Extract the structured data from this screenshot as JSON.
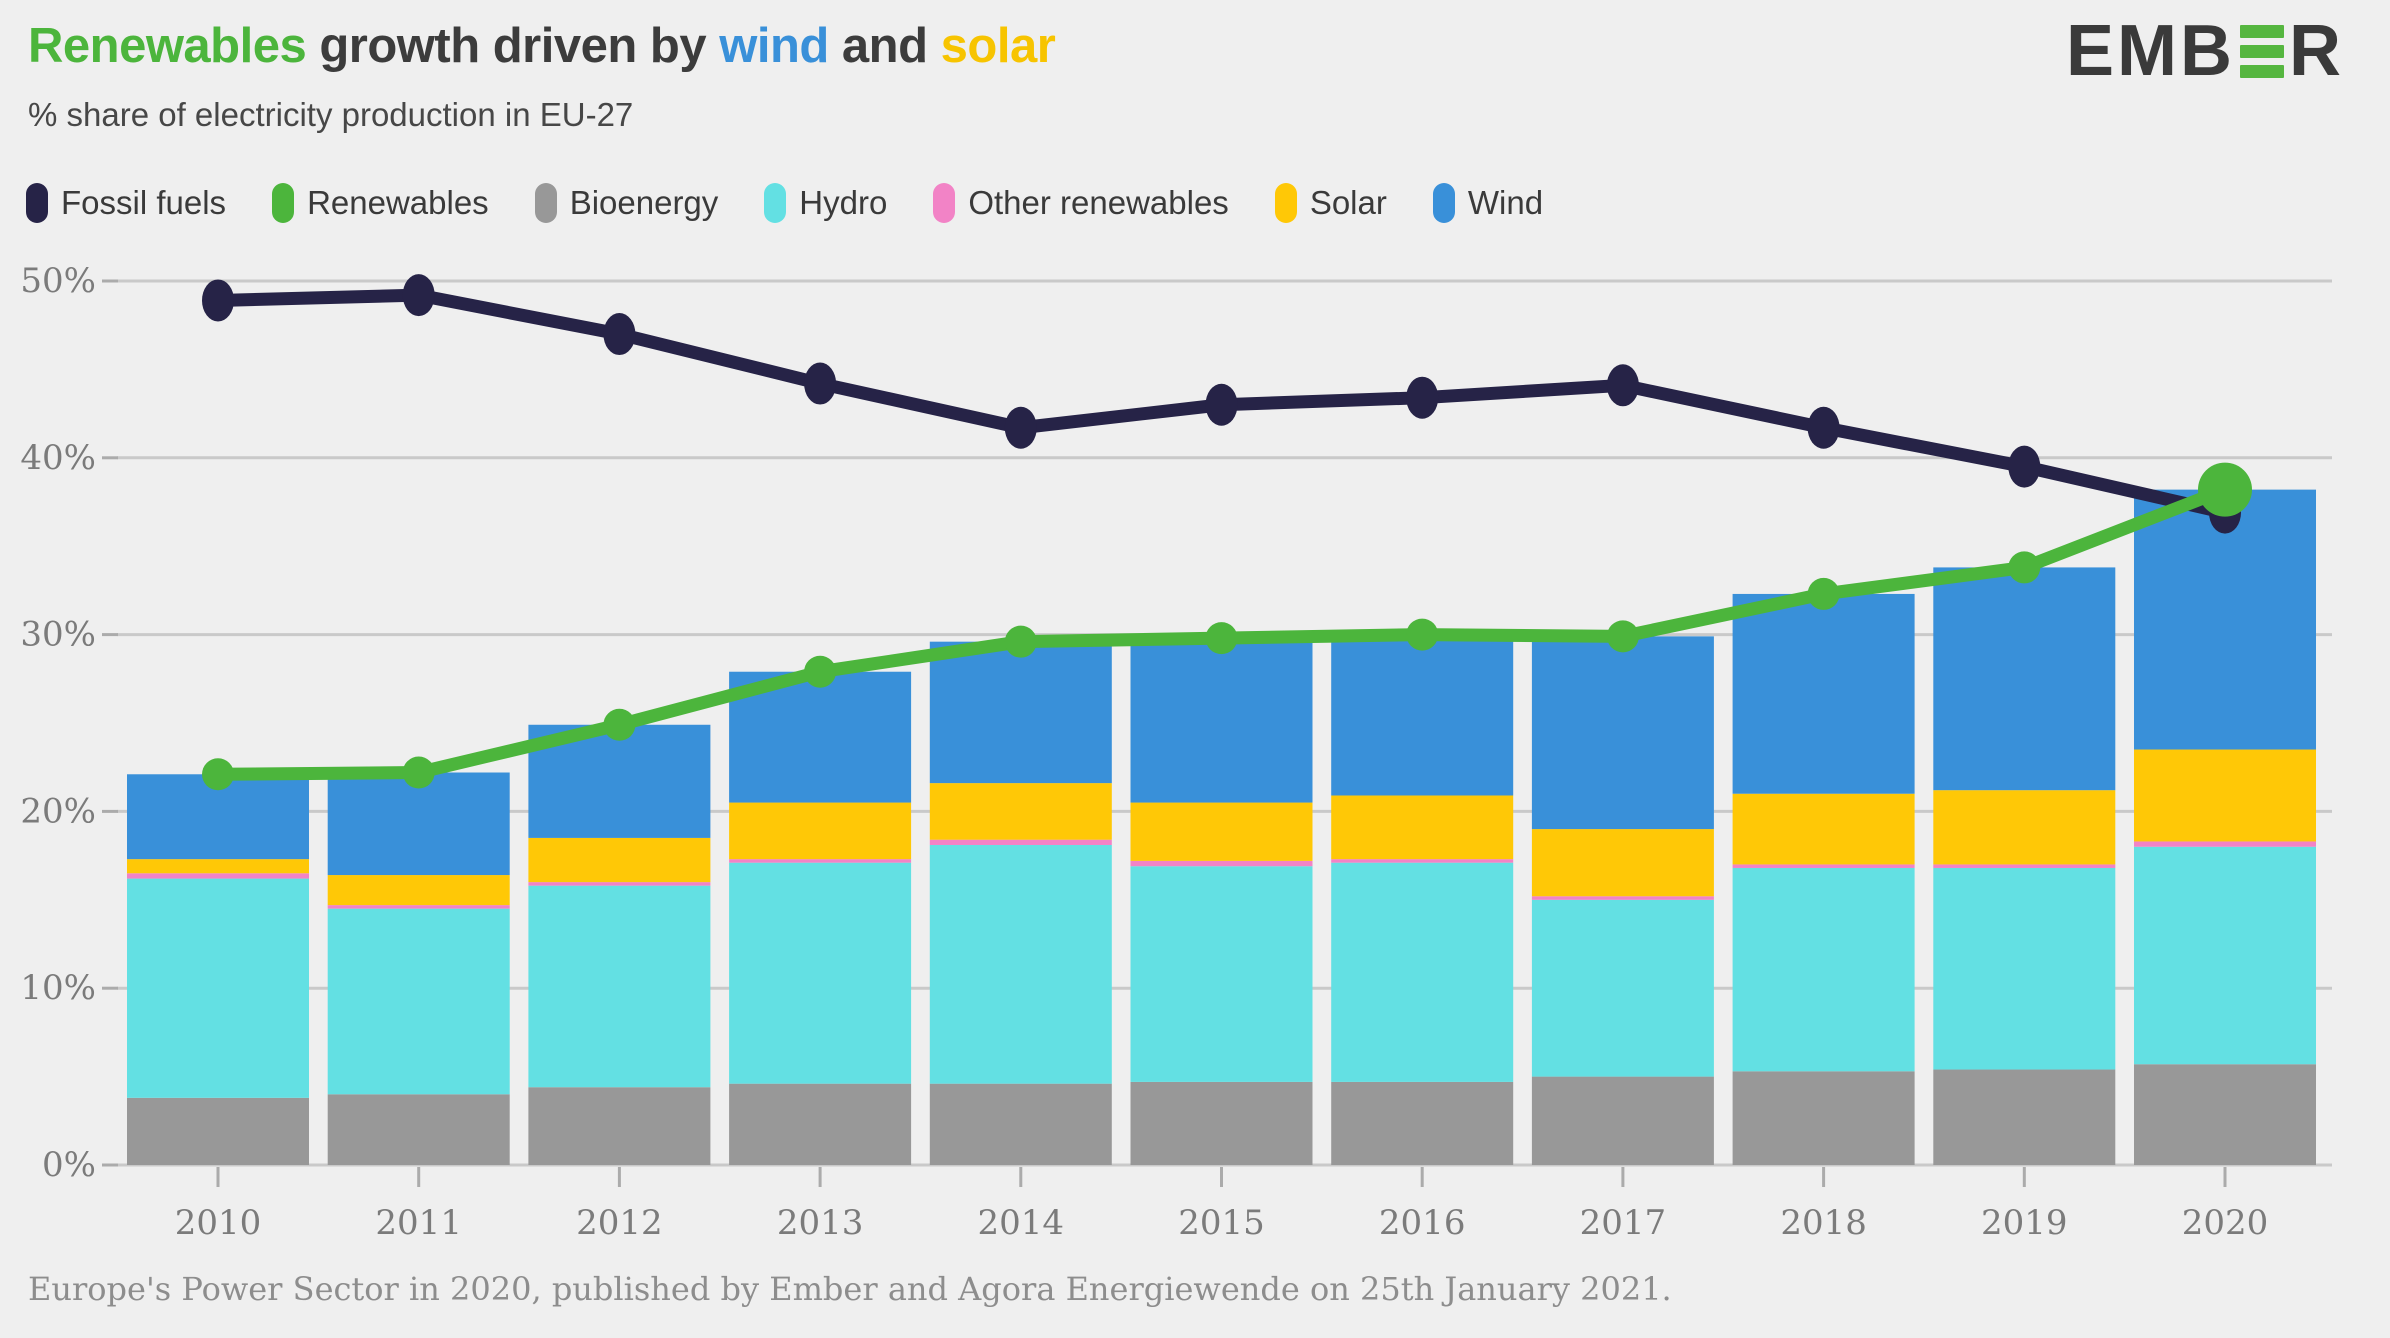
{
  "header": {
    "title_parts": [
      {
        "text": "Renewables",
        "color": "#4CB53C"
      },
      {
        "text": " growth driven by ",
        "color": "#3C3C3C"
      },
      {
        "text": "wind",
        "color": "#3990D9"
      },
      {
        "text": " and ",
        "color": "#3C3C3C"
      },
      {
        "text": "solar",
        "color": "#F7C400"
      }
    ],
    "subtitle": "% share of electricity production in EU-27"
  },
  "logo": {
    "left": "EMB",
    "right": "R",
    "alt": "EMBER",
    "accent": "#55B63F"
  },
  "legend": [
    {
      "label": "Fossil fuels",
      "color": "#262347"
    },
    {
      "label": "Renewables",
      "color": "#4CB53C"
    },
    {
      "label": "Bioenergy",
      "color": "#989898"
    },
    {
      "label": "Hydro",
      "color": "#63E0E3"
    },
    {
      "label": "Other renewables",
      "color": "#F283C6"
    },
    {
      "label": "Solar",
      "color": "#FFC806"
    },
    {
      "label": "Wind",
      "color": "#3990D9"
    }
  ],
  "footer": {
    "text": "Europe's Power Sector in 2020, published by Ember and Agora Energiewende on 25th January 2021."
  },
  "colors": {
    "background": "#EFEFEF",
    "gridline": "#C9C9C9",
    "tick": "#ABABAB",
    "axis_text": "#7B7B7B"
  },
  "chart_data": {
    "type": "bar",
    "stacked": true,
    "title": "Renewables growth driven by wind and solar",
    "subtitle": "% share of electricity production in EU-27",
    "unit": "%",
    "legend_position": "top",
    "categories": [
      "2010",
      "2011",
      "2012",
      "2013",
      "2014",
      "2015",
      "2016",
      "2017",
      "2018",
      "2019",
      "2020"
    ],
    "y_axis": {
      "min": 0,
      "max": 50,
      "grid": true,
      "tick_values": [
        0,
        10,
        20,
        30,
        40,
        50
      ],
      "tick_labels": [
        "0%",
        "10%",
        "20%",
        "30%",
        "40%",
        "50%"
      ]
    },
    "bar_series": [
      {
        "name": "Bioenergy",
        "color": "#989898",
        "values": [
          3.8,
          4.0,
          4.4,
          4.6,
          4.6,
          4.7,
          4.7,
          5.0,
          5.3,
          5.4,
          5.7
        ]
      },
      {
        "name": "Hydro",
        "color": "#63E0E3",
        "values": [
          12.4,
          10.5,
          11.4,
          12.5,
          13.5,
          12.2,
          12.4,
          10.0,
          11.5,
          11.4,
          12.3
        ]
      },
      {
        "name": "Other renewables",
        "color": "#F283C6",
        "values": [
          0.3,
          0.2,
          0.2,
          0.2,
          0.3,
          0.3,
          0.2,
          0.2,
          0.2,
          0.2,
          0.3
        ]
      },
      {
        "name": "Solar",
        "color": "#FFC806",
        "values": [
          0.8,
          1.7,
          2.5,
          3.2,
          3.2,
          3.3,
          3.6,
          3.8,
          4.0,
          4.2,
          5.2
        ]
      },
      {
        "name": "Wind",
        "color": "#3990D9",
        "values": [
          4.8,
          5.8,
          6.4,
          7.4,
          8.0,
          9.3,
          9.1,
          10.9,
          11.3,
          12.6,
          14.7
        ]
      }
    ],
    "line_series": [
      {
        "name": "Fossil fuels",
        "color": "#262347",
        "values": [
          48.9,
          49.2,
          47.0,
          44.2,
          41.7,
          43.0,
          43.4,
          44.1,
          41.7,
          39.5,
          36.9
        ]
      },
      {
        "name": "Renewables",
        "color": "#4CB53C",
        "values": [
          22.1,
          22.2,
          24.9,
          27.9,
          29.6,
          29.8,
          30.0,
          29.9,
          32.3,
          33.8,
          38.2
        ],
        "emphasize_last_point": true
      }
    ]
  }
}
